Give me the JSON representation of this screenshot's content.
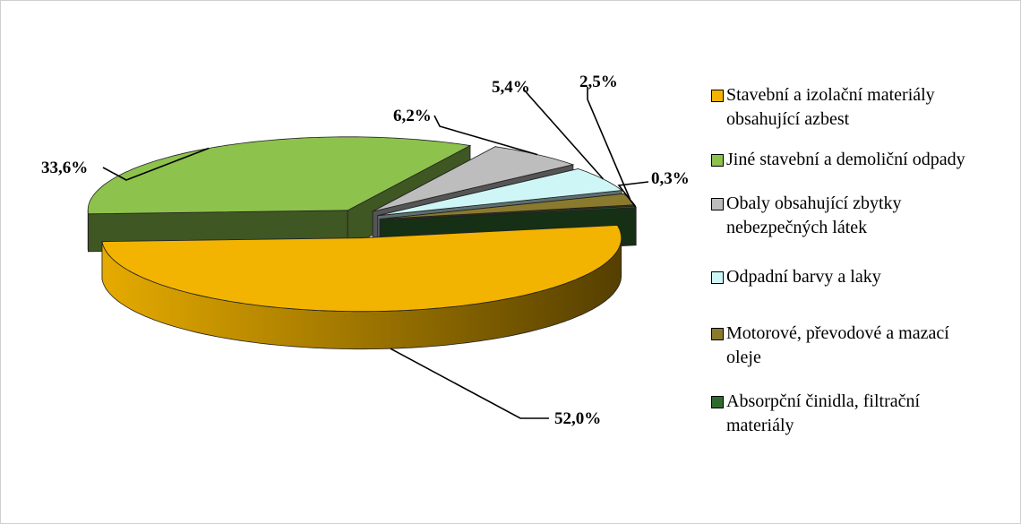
{
  "chart_data": {
    "type": "pie",
    "categories": [
      "Stavební a izolační materiály obsahující azbest",
      "Jiné stavební a demoliční odpady",
      "Obaly obsahující zbytky nebezpečných látek",
      "Odpadní barvy a laky",
      "Motorové, převodové a mazací oleje",
      "Absorpční činidla, filtrační materiály"
    ],
    "values": [
      52.0,
      33.6,
      6.2,
      5.4,
      2.5,
      0.3
    ],
    "value_labels": [
      "52,0%",
      "33,6%",
      "6,2%",
      "5,4%",
      "2,5%",
      "0,3%"
    ],
    "colors": [
      "#f2b400",
      "#8dc24c",
      "#bdbdbd",
      "#cff6f6",
      "#8a7a2e",
      "#2f6b2f"
    ],
    "legend": "right"
  }
}
